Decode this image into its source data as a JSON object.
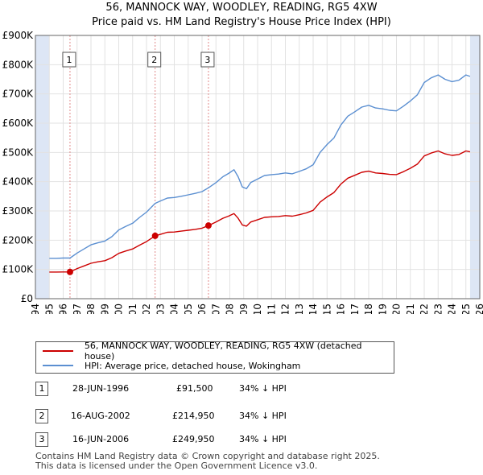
{
  "header": {
    "title": "56, MANNOCK WAY, WOODLEY, READING, RG5 4XW",
    "subtitle": "Price paid vs. HM Land Registry's House Price Index (HPI)"
  },
  "chart_data": {
    "type": "line",
    "title": "56, MANNOCK WAY, WOODLEY, READING, RG5 4XW",
    "subtitle": "Price paid vs. HM Land Registry's House Price Index (HPI)",
    "xlim": [
      1994,
      2026
    ],
    "ylim": [
      0,
      900000
    ],
    "y_ticks": [
      0,
      100000,
      200000,
      300000,
      400000,
      500000,
      600000,
      700000,
      800000,
      900000
    ],
    "y_tick_labels": [
      "£0",
      "£100K",
      "£200K",
      "£300K",
      "£400K",
      "£500K",
      "£600K",
      "£700K",
      "£800K",
      "£900K"
    ],
    "x_ticks": [
      1994,
      1995,
      1996,
      1997,
      1998,
      1999,
      2000,
      2001,
      2002,
      2003,
      2004,
      2005,
      2006,
      2007,
      2008,
      2009,
      2010,
      2011,
      2012,
      2013,
      2014,
      2015,
      2016,
      2017,
      2018,
      2019,
      2020,
      2021,
      2022,
      2023,
      2024,
      2025,
      2026
    ],
    "x_tick_labels": [
      "1994",
      "1995",
      "1996",
      "1997",
      "1998",
      "1999",
      "2000",
      "2001",
      "2002",
      "2003",
      "2004",
      "2005",
      "2006",
      "2007",
      "2008",
      "2009",
      "2010",
      "2011",
      "2012",
      "2013",
      "2014",
      "2015",
      "2016",
      "2017",
      "2018",
      "2019",
      "2020",
      "2021",
      "2022",
      "2023",
      "2024",
      "2025",
      "2026"
    ],
    "data_range": [
      1995.0,
      2025.3
    ],
    "grid": true,
    "series": [
      {
        "name": "56, MANNOCK WAY, WOODLEY, READING, RG5 4XW (detached house)",
        "color": "#cc0000",
        "x": [
          1995.0,
          1995.5,
          1996.0,
          1996.49,
          1997.0,
          1997.5,
          1998.0,
          1998.5,
          1999.0,
          1999.5,
          2000.0,
          2000.5,
          2001.0,
          2001.5,
          2002.0,
          2002.62,
          2003.0,
          2003.5,
          2004.0,
          2004.5,
          2005.0,
          2005.5,
          2006.0,
          2006.46,
          2007.0,
          2007.5,
          2007.9,
          2008.3,
          2008.6,
          2008.9,
          2009.2,
          2009.5,
          2010.0,
          2010.5,
          2011.0,
          2011.5,
          2012.0,
          2012.5,
          2013.0,
          2013.5,
          2014.0,
          2014.5,
          2015.0,
          2015.5,
          2016.0,
          2016.5,
          2017.0,
          2017.5,
          2018.0,
          2018.5,
          2019.0,
          2019.5,
          2020.0,
          2020.5,
          2021.0,
          2021.5,
          2022.0,
          2022.5,
          2023.0,
          2023.5,
          2024.0,
          2024.5,
          2025.0,
          2025.3
        ],
        "values": [
          91000,
          91000,
          91500,
          91500,
          103000,
          112000,
          121000,
          126000,
          130000,
          140000,
          155000,
          163000,
          170000,
          183000,
          195000,
          214950,
          220000,
          227000,
          228000,
          231000,
          234000,
          237000,
          241000,
          249950,
          262000,
          275000,
          282000,
          291000,
          275000,
          252000,
          248000,
          262000,
          270000,
          278000,
          280000,
          281000,
          284000,
          282000,
          287000,
          293000,
          302000,
          330000,
          348000,
          363000,
          392000,
          412000,
          422000,
          432000,
          436000,
          430000,
          428000,
          425000,
          424000,
          434000,
          446000,
          460000,
          488000,
          498000,
          505000,
          495000,
          490000,
          493000,
          505000,
          502000
        ]
      },
      {
        "name": "HPI: Average price, detached house, Wokingham",
        "color": "#5b8fd1",
        "x": [
          1995.0,
          1995.5,
          1996.0,
          1996.49,
          1997.0,
          1997.5,
          1998.0,
          1998.5,
          1999.0,
          1999.5,
          2000.0,
          2000.5,
          2001.0,
          2001.5,
          2002.0,
          2002.62,
          2003.0,
          2003.5,
          2004.0,
          2004.5,
          2005.0,
          2005.5,
          2006.0,
          2006.46,
          2007.0,
          2007.5,
          2007.9,
          2008.3,
          2008.6,
          2008.9,
          2009.2,
          2009.5,
          2010.0,
          2010.5,
          2011.0,
          2011.5,
          2012.0,
          2012.5,
          2013.0,
          2013.5,
          2014.0,
          2014.5,
          2015.0,
          2015.5,
          2016.0,
          2016.5,
          2017.0,
          2017.5,
          2018.0,
          2018.5,
          2019.0,
          2019.5,
          2020.0,
          2020.5,
          2021.0,
          2021.5,
          2022.0,
          2022.5,
          2023.0,
          2023.5,
          2024.0,
          2024.5,
          2025.0,
          2025.3
        ],
        "values": [
          138000,
          138000,
          139000,
          139000,
          156000,
          170000,
          184000,
          191000,
          197000,
          212000,
          235000,
          247000,
          258000,
          278000,
          296000,
          326000,
          334000,
          344000,
          346000,
          350000,
          355000,
          360000,
          366000,
          379000,
          397000,
          417000,
          428000,
          441000,
          417000,
          382000,
          376000,
          397000,
          409000,
          421000,
          424000,
          426000,
          430000,
          427000,
          435000,
          444000,
          458000,
          500000,
          527000,
          550000,
          594000,
          624000,
          639000,
          655000,
          661000,
          652000,
          649000,
          644000,
          642000,
          658000,
          676000,
          697000,
          739000,
          755000,
          765000,
          750000,
          742000,
          747000,
          765000,
          760000
        ]
      }
    ],
    "sales": [
      {
        "label": "1",
        "x": 1996.49,
        "value": 91500
      },
      {
        "label": "2",
        "x": 2002.62,
        "value": 214950
      },
      {
        "label": "3",
        "x": 2006.46,
        "value": 249950
      }
    ],
    "colors": {
      "property": "#cc0000",
      "hpi": "#5b8fd1",
      "shade": "#dde6f5",
      "grid": "#e2e2e2",
      "marker_line": "#e08a8a"
    }
  },
  "legend": {
    "property_label": "56, MANNOCK WAY, WOODLEY, READING, RG5 4XW (detached house)",
    "hpi_label": "HPI: Average price, detached house, Wokingham"
  },
  "transactions": [
    {
      "num": "1",
      "date": "28-JUN-1996",
      "price": "£91,500",
      "hpi": "34% ↓ HPI"
    },
    {
      "num": "2",
      "date": "16-AUG-2002",
      "price": "£214,950",
      "hpi": "34% ↓ HPI"
    },
    {
      "num": "3",
      "date": "16-JUN-2006",
      "price": "£249,950",
      "hpi": "34% ↓ HPI"
    }
  ],
  "footer": {
    "line1": "Contains HM Land Registry data © Crown copyright and database right 2025.",
    "line2": "This data is licensed under the Open Government Licence v3.0."
  }
}
